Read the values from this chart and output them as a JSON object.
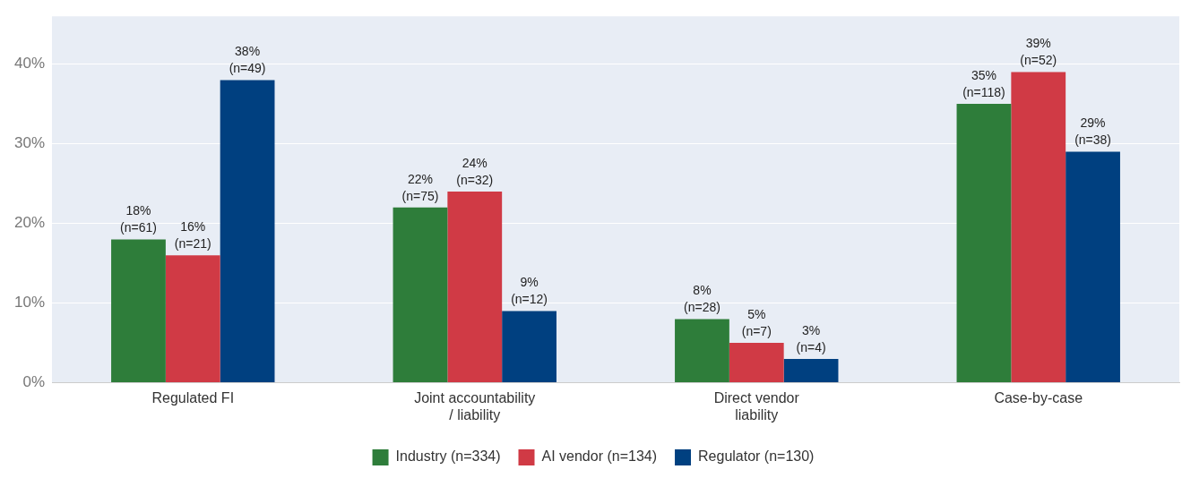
{
  "chart_data": {
    "type": "bar",
    "categories": [
      "Regulated FI",
      "Joint accountability\n/ liability",
      "Direct vendor\nliability",
      "Case-by-case"
    ],
    "series": [
      {
        "name": "Industry (n=334)",
        "color": "#2e7d3a",
        "values": [
          18,
          22,
          8,
          35
        ],
        "value_labels": [
          "18%\n(n=61)",
          "22%\n(n=75)",
          "8%\n(n=28)",
          "35%\n(n=118)"
        ]
      },
      {
        "name": "AI vendor (n=134)",
        "color": "#d03a45",
        "values": [
          16,
          24,
          5,
          39
        ],
        "value_labels": [
          "16%\n(n=21)",
          "24%\n(n=32)",
          "5%\n(n=7)",
          "39%\n(n=52)"
        ]
      },
      {
        "name": "Regulator (n=130)",
        "color": "#004080",
        "values": [
          38,
          9,
          3,
          29
        ],
        "value_labels": [
          "38%\n(n=49)",
          "9%\n(n=12)",
          "3%\n(n=4)",
          "29%\n(n=38)"
        ]
      }
    ],
    "ylim": [
      0,
      46
    ],
    "yticks": [
      {
        "value": 0,
        "label": "0%"
      },
      {
        "value": 10,
        "label": "10%"
      },
      {
        "value": 20,
        "label": "20%"
      },
      {
        "value": 30,
        "label": "30%"
      },
      {
        "value": 40,
        "label": "40%"
      }
    ],
    "grid": "y",
    "legend": "bottom"
  }
}
